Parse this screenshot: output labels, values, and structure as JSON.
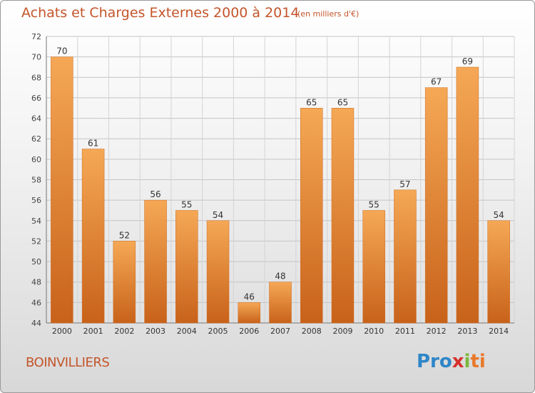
{
  "header": {
    "title": "Achats et Charges Externes 2000 à 2014",
    "subtitle": "(en milliers d'€)"
  },
  "footer": {
    "place": "BOINVILLIERS",
    "logo": {
      "p1": "Pro",
      "p2": "x",
      "p3": "i",
      "p4": "ti"
    }
  },
  "chart_data": {
    "type": "bar",
    "categories": [
      "2000",
      "2001",
      "2002",
      "2003",
      "2004",
      "2005",
      "2006",
      "2007",
      "2008",
      "2009",
      "2010",
      "2011",
      "2012",
      "2013",
      "2014"
    ],
    "values": [
      70,
      61,
      52,
      56,
      55,
      54,
      46,
      48,
      65,
      65,
      55,
      57,
      67,
      69,
      54
    ],
    "ylim": [
      44,
      72
    ],
    "yticks": [
      44,
      46,
      48,
      50,
      52,
      54,
      56,
      58,
      60,
      62,
      64,
      66,
      68,
      70,
      72
    ],
    "grid": true,
    "bar_color": "#e8852f",
    "bar_color_dark": "#c8621a",
    "bar_color_light": "#f5a855",
    "title_color": "#c4552a"
  }
}
